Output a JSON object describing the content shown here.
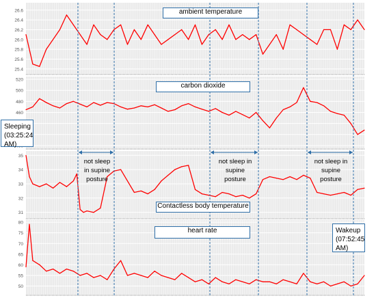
{
  "chart_data": [
    {
      "type": "line",
      "title": "ambient temperature",
      "ylim": [
        25.3,
        26.75
      ],
      "yticks": [
        25.4,
        25.6,
        25.8,
        26.0,
        26.2,
        26.4,
        26.6
      ],
      "ytick_labels": [
        "25.4",
        "25.6",
        "25.8",
        "26.0",
        "26.2",
        "26.4",
        "26.6"
      ],
      "series": [
        {
          "x": [
            0,
            2,
            4,
            6,
            8,
            10,
            12,
            14,
            16,
            18,
            20,
            22,
            24,
            26,
            28,
            30,
            32,
            34,
            36,
            38,
            40,
            42,
            44,
            46,
            48,
            50,
            52,
            54,
            56,
            58,
            60,
            62,
            64,
            66,
            68,
            70,
            72,
            74,
            76,
            78,
            80,
            82,
            84,
            86,
            88,
            90,
            92,
            94,
            96,
            98,
            100
          ],
          "y": [
            26.1,
            25.5,
            25.45,
            25.8,
            26.0,
            26.2,
            26.5,
            26.3,
            26.1,
            25.9,
            26.3,
            26.1,
            26.0,
            26.2,
            26.3,
            25.9,
            26.2,
            26.0,
            26.3,
            26.1,
            25.9,
            26.0,
            26.1,
            26.2,
            26.0,
            26.3,
            25.9,
            26.1,
            26.2,
            26.0,
            26.3,
            26.0,
            26.1,
            26.0,
            26.1,
            25.7,
            25.9,
            26.1,
            25.8,
            26.3,
            26.2,
            26.1,
            26.0,
            25.9,
            26.2,
            26.2,
            25.8,
            26.3,
            26.2,
            26.4,
            26.2
          ]
        }
      ]
    },
    {
      "type": "line",
      "title": "carbon dioxide",
      "ylim": [
        395,
        525
      ],
      "yticks": [
        400,
        420,
        440,
        460,
        480,
        500,
        520
      ],
      "ytick_labels": [
        "400",
        "420",
        "440",
        "460",
        "480",
        "500",
        "520"
      ],
      "series": [
        {
          "x": [
            0,
            2,
            4,
            6,
            8,
            10,
            12,
            14,
            16,
            18,
            20,
            22,
            24,
            26,
            28,
            30,
            32,
            34,
            36,
            38,
            40,
            42,
            44,
            46,
            48,
            50,
            52,
            54,
            56,
            58,
            60,
            62,
            64,
            66,
            68,
            70,
            72,
            74,
            76,
            78,
            80,
            82,
            84,
            86,
            88,
            90,
            92,
            94,
            96,
            98,
            100
          ],
          "y": [
            465,
            470,
            485,
            478,
            472,
            468,
            476,
            480,
            475,
            470,
            478,
            473,
            478,
            476,
            470,
            466,
            468,
            472,
            470,
            474,
            468,
            462,
            465,
            472,
            476,
            470,
            466,
            462,
            467,
            460,
            455,
            462,
            456,
            450,
            460,
            445,
            432,
            450,
            465,
            470,
            478,
            505,
            480,
            478,
            472,
            462,
            458,
            455,
            440,
            420,
            428
          ]
        }
      ]
    },
    {
      "type": "line",
      "title": "Contactless body temperature",
      "ylim": [
        30.6,
        35.3
      ],
      "yticks": [
        31,
        32,
        33,
        34,
        35
      ],
      "ytick_labels": [
        "31",
        "32",
        "33",
        "34",
        "35"
      ],
      "series": [
        {
          "x": [
            0,
            1,
            2,
            4,
            6,
            8,
            10,
            12,
            14,
            15,
            16,
            17,
            18,
            20,
            22,
            24,
            26,
            28,
            30,
            32,
            34,
            36,
            38,
            40,
            42,
            44,
            46,
            48,
            50,
            52,
            54,
            56,
            58,
            60,
            62,
            64,
            66,
            68,
            70,
            72,
            74,
            76,
            78,
            80,
            82,
            84,
            86,
            88,
            90,
            92,
            94,
            96,
            98,
            100
          ],
          "y": [
            35.0,
            33.5,
            33.0,
            32.8,
            33.0,
            32.7,
            33.1,
            32.8,
            33.2,
            33.7,
            31.2,
            31.0,
            31.1,
            31.0,
            31.3,
            33.5,
            33.9,
            34.0,
            33.2,
            32.4,
            32.5,
            32.3,
            32.6,
            33.2,
            33.6,
            34.0,
            34.2,
            34.3,
            32.6,
            32.3,
            32.2,
            32.1,
            32.4,
            32.3,
            32.1,
            32.2,
            32.0,
            32.3,
            33.3,
            33.5,
            33.4,
            33.3,
            33.5,
            33.3,
            33.6,
            33.4,
            32.4,
            32.3,
            32.2,
            32.3,
            32.4,
            32.2,
            32.6,
            32.7
          ]
        }
      ]
    },
    {
      "type": "line",
      "title": "heart rate",
      "ylim": [
        46,
        81
      ],
      "yticks": [
        50,
        55,
        60,
        65,
        70,
        75,
        80
      ],
      "ytick_labels": [
        "50",
        "55",
        "60",
        "65",
        "70",
        "75",
        "80"
      ],
      "series": [
        {
          "x": [
            0,
            1,
            2,
            4,
            6,
            8,
            10,
            12,
            14,
            16,
            18,
            20,
            22,
            24,
            26,
            28,
            30,
            32,
            34,
            36,
            38,
            40,
            42,
            44,
            46,
            48,
            50,
            52,
            54,
            56,
            58,
            60,
            62,
            64,
            66,
            68,
            70,
            72,
            74,
            76,
            78,
            80,
            82,
            84,
            86,
            88,
            90,
            92,
            94,
            96,
            98,
            100
          ],
          "y": [
            59,
            79,
            62,
            60,
            57,
            58,
            56,
            58,
            57,
            55,
            56,
            54,
            55,
            53,
            58,
            62,
            55,
            56,
            55,
            54,
            57,
            55,
            54,
            53,
            56,
            54,
            52,
            53,
            51,
            54,
            52,
            51,
            53,
            52,
            51,
            53,
            52,
            52,
            51,
            53,
            52,
            51,
            56,
            52,
            51,
            52,
            50,
            51,
            52,
            50,
            51,
            55
          ]
        }
      ]
    }
  ],
  "annotations": {
    "sleeping": "Sleeping (03:25:24 AM)",
    "wakeup": "Wakeup (07:52:45 AM)",
    "not_sleep_1": "not sleep in supine posture",
    "not_sleep_2": "not sleep in supine posture",
    "not_sleep_3": "not sleep in supine posture"
  },
  "colors": {
    "series": "#ff0000",
    "panel_background": "#ebebeb",
    "gridline": "#ffffff",
    "marker_line": "#2f6fa8"
  }
}
